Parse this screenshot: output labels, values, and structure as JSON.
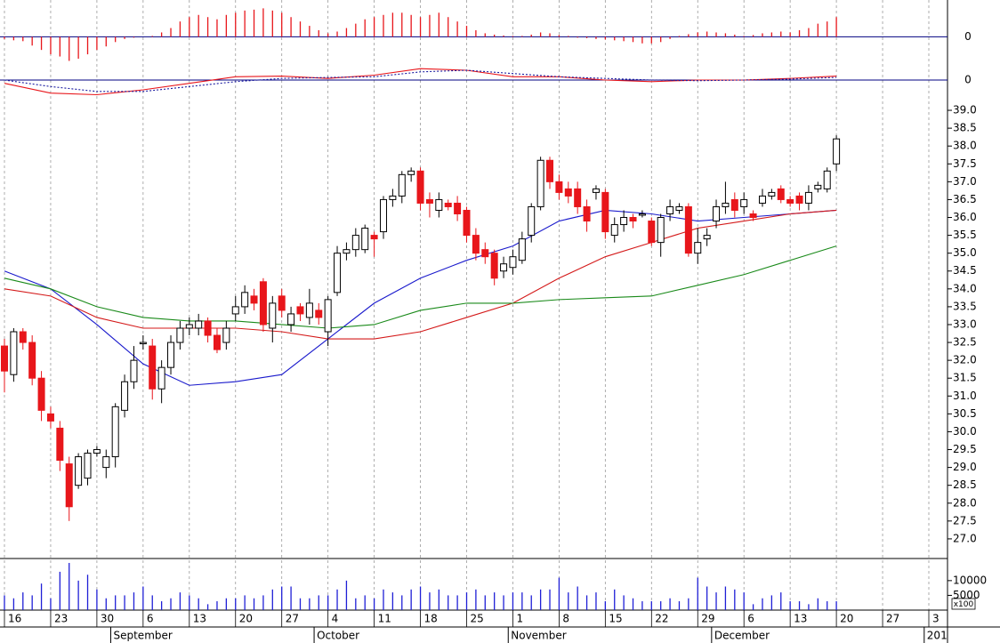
{
  "chart_data": [
    {
      "type": "bar",
      "color": "#e8161b",
      "ylim": [
        -0.5,
        0.8
      ],
      "yticks": [
        0
      ],
      "values": [
        -0.05,
        -0.08,
        -0.1,
        -0.2,
        -0.3,
        -0.4,
        -0.45,
        -0.55,
        -0.5,
        -0.4,
        -0.3,
        -0.22,
        -0.12,
        -0.05,
        -0.02,
        0.0,
        0.02,
        0.1,
        0.2,
        0.35,
        0.45,
        0.5,
        0.45,
        0.4,
        0.5,
        0.55,
        0.6,
        0.62,
        0.65,
        0.6,
        0.55,
        0.45,
        0.35,
        0.25,
        0.15,
        0.08,
        0.12,
        0.2,
        0.3,
        0.4,
        0.45,
        0.5,
        0.55,
        0.55,
        0.5,
        0.45,
        0.5,
        0.55,
        0.45,
        0.35,
        0.25,
        0.15,
        0.08,
        0.05,
        0.03,
        0.02,
        0.02,
        0.05,
        0.1,
        0.08,
        0.04,
        0.02,
        -0.02,
        -0.03,
        -0.05,
        -0.06,
        -0.08,
        -0.1,
        -0.12,
        -0.15,
        -0.15,
        -0.12,
        -0.05,
        0.02,
        0.06,
        0.1,
        0.12,
        0.1,
        0.08,
        0.05,
        0.02,
        0.04,
        0.08,
        0.1,
        0.12,
        0.1,
        0.15,
        0.2,
        0.3,
        0.35,
        0.45,
        null,
        null,
        null,
        null,
        null,
        null,
        null,
        null,
        null,
        null,
        null,
        null
      ]
    },
    {
      "type": "line",
      "ylim": [
        -0.6,
        0.6
      ],
      "yticks": [
        0
      ],
      "x": [
        0,
        5,
        10,
        15,
        20,
        25,
        30,
        35,
        40,
        45,
        50,
        55,
        60,
        65,
        70,
        75,
        80,
        85,
        90
      ],
      "series": [
        {
          "color": "#e8161b",
          "values": [
            -0.1,
            -0.4,
            -0.45,
            -0.3,
            -0.1,
            0.1,
            0.12,
            0.05,
            0.15,
            0.35,
            0.3,
            0.1,
            0.1,
            0.0,
            -0.05,
            0.0,
            0.0,
            0.05,
            0.12
          ]
        },
        {
          "color": "#1a1aa0",
          "dashed": true,
          "values": [
            0.0,
            -0.2,
            -0.35,
            -0.35,
            -0.2,
            -0.05,
            0.05,
            0.08,
            0.1,
            0.25,
            0.3,
            0.2,
            0.1,
            0.05,
            0.0,
            -0.02,
            0.0,
            0.03,
            0.08
          ]
        }
      ]
    },
    {
      "type": "candlestick",
      "up_color": "#ffffff",
      "down_color": "#e8161b",
      "ylim": [
        26.45,
        39.3
      ],
      "yticks": [
        {
          "value": 27,
          "label": "27.0"
        },
        {
          "value": 27.5,
          "label": "27.5"
        },
        {
          "value": 28,
          "label": "28.0"
        },
        {
          "value": 28.5,
          "label": "28.5"
        },
        {
          "value": 29,
          "label": "29.0"
        },
        {
          "value": 29.5,
          "label": "29.5"
        },
        {
          "value": 30,
          "label": "30.0"
        },
        {
          "value": 30.5,
          "label": "30.5"
        },
        {
          "value": 31,
          "label": "31.0"
        },
        {
          "value": 31.5,
          "label": "31.5"
        },
        {
          "value": 32,
          "label": "32.0"
        },
        {
          "value": 32.5,
          "label": "32.5"
        },
        {
          "value": 33,
          "label": "33.0"
        },
        {
          "value": 33.5,
          "label": "33.5"
        },
        {
          "value": 34,
          "label": "34.0"
        },
        {
          "value": 34.5,
          "label": "34.5"
        },
        {
          "value": 35,
          "label": "35.0"
        },
        {
          "value": 35.5,
          "label": "35.5"
        },
        {
          "value": 36,
          "label": "36.0"
        },
        {
          "value": 36.5,
          "label": "36.5"
        },
        {
          "value": 37,
          "label": "37.0"
        },
        {
          "value": 37.5,
          "label": "37.5"
        },
        {
          "value": 38,
          "label": "38.0"
        },
        {
          "value": 38.5,
          "label": "38.5"
        },
        {
          "value": 39,
          "label": "39.0"
        }
      ],
      "categories": [
        "16",
        null,
        null,
        null,
        null,
        "23",
        null,
        null,
        null,
        null,
        "30",
        null,
        null,
        null,
        null,
        "6",
        null,
        null,
        null,
        null,
        "13",
        null,
        null,
        null,
        null,
        "20",
        null,
        null,
        null,
        null,
        "27",
        null,
        null,
        null,
        null,
        "4",
        null,
        null,
        null,
        null,
        "11",
        null,
        null,
        null,
        null,
        "18",
        null,
        null,
        null,
        null,
        "25",
        null,
        null,
        null,
        null,
        "1",
        null,
        null,
        null,
        null,
        "8",
        null,
        null,
        null,
        null,
        "15",
        null,
        null,
        null,
        null,
        "22",
        null,
        null,
        null,
        null,
        "29",
        null,
        null,
        null,
        null,
        "6",
        null,
        null,
        null,
        null,
        "13",
        null,
        null,
        null,
        null,
        "20",
        null,
        null,
        null,
        null,
        "27",
        null,
        null,
        null,
        null,
        "3",
        null,
        null
      ],
      "months": [
        {
          "label": "September",
          "start": 12
        },
        {
          "label": "October",
          "start": 34
        },
        {
          "label": "November",
          "start": 55
        },
        {
          "label": "December",
          "start": 77
        },
        {
          "label": "201",
          "start": 100
        }
      ],
      "open": [
        32.4,
        31.6,
        32.8,
        32.5,
        31.5,
        30.5,
        30.1,
        29.1,
        28.5,
        28.7,
        29.4,
        29.0,
        29.3,
        30.6,
        31.4,
        32.5,
        32.4,
        31.2,
        31.8,
        32.5,
        32.9,
        32.9,
        33.1,
        32.7,
        32.5,
        33.3,
        33.5,
        33.8,
        34.2,
        32.9,
        33.8,
        33.0,
        33.5,
        33.2,
        33.4,
        32.8,
        33.9,
        35.0,
        35.1,
        35.1,
        35.5,
        35.6,
        36.5,
        36.6,
        37.2,
        37.3,
        36.5,
        36.2,
        36.4,
        36.4,
        36.2,
        35.5,
        35.1,
        35.0,
        34.5,
        34.6,
        34.8,
        35.5,
        36.3,
        37.6,
        37.0,
        36.8,
        36.8,
        36.3,
        36.7,
        36.7,
        35.5,
        35.8,
        36.0,
        36.1,
        35.9,
        35.3,
        36.1,
        36.2,
        36.3,
        35.0,
        35.4,
        35.9,
        36.3,
        36.5,
        36.3,
        36.1,
        36.4,
        36.6,
        36.8,
        36.5,
        36.6,
        36.4,
        36.8,
        36.8,
        37.5,
        null,
        null,
        null,
        null,
        null,
        null,
        null,
        null,
        null,
        null,
        null,
        null
      ],
      "high": [
        32.6,
        32.9,
        32.9,
        32.7,
        31.7,
        30.7,
        30.3,
        29.3,
        29.4,
        29.5,
        29.6,
        29.5,
        30.8,
        31.6,
        32.4,
        32.7,
        32.6,
        32.0,
        32.7,
        33.1,
        33.2,
        33.3,
        33.2,
        32.9,
        33.1,
        33.8,
        34.1,
        34.0,
        34.3,
        33.8,
        34.0,
        33.5,
        33.6,
        34.0,
        33.6,
        33.8,
        35.2,
        35.3,
        35.7,
        35.8,
        35.6,
        36.6,
        36.8,
        37.3,
        37.4,
        37.4,
        36.7,
        36.7,
        36.5,
        36.6,
        36.3,
        35.7,
        35.3,
        35.1,
        34.9,
        35.1,
        35.6,
        36.4,
        37.7,
        37.7,
        37.2,
        37.0,
        37.0,
        36.5,
        36.9,
        36.8,
        36.0,
        36.2,
        36.1,
        36.2,
        36.0,
        36.1,
        36.5,
        36.4,
        36.4,
        35.7,
        35.7,
        36.5,
        37.0,
        36.7,
        36.7,
        36.2,
        36.8,
        36.8,
        36.9,
        36.6,
        36.7,
        36.9,
        37.0,
        37.4,
        38.3,
        null,
        null,
        null,
        null,
        null,
        null,
        null,
        null,
        null,
        null,
        null,
        null
      ],
      "low": [
        31.1,
        31.4,
        32.3,
        31.3,
        30.3,
        30.1,
        28.9,
        27.5,
        28.4,
        28.5,
        29.3,
        28.7,
        29.0,
        30.4,
        31.2,
        32.3,
        30.9,
        30.8,
        31.6,
        32.3,
        32.7,
        32.7,
        32.5,
        32.2,
        32.3,
        33.1,
        33.3,
        33.4,
        32.8,
        32.5,
        33.2,
        32.8,
        33.1,
        33.0,
        33.0,
        32.4,
        33.8,
        34.8,
        34.9,
        35.0,
        34.9,
        35.4,
        36.3,
        36.4,
        37.0,
        36.2,
        36.0,
        36.0,
        36.2,
        35.9,
        35.3,
        34.8,
        34.7,
        34.1,
        34.3,
        34.4,
        34.7,
        35.3,
        36.2,
        36.8,
        36.5,
        36.4,
        36.1,
        35.6,
        36.5,
        35.4,
        35.3,
        35.6,
        35.7,
        36.0,
        35.2,
        34.9,
        35.9,
        36.1,
        34.9,
        34.7,
        35.2,
        35.7,
        36.1,
        36.0,
        36.1,
        35.9,
        36.3,
        36.5,
        36.4,
        36.3,
        36.2,
        36.2,
        36.7,
        36.7,
        37.3,
        null,
        null,
        null,
        null,
        null,
        null,
        null,
        null,
        null,
        null,
        null,
        null
      ],
      "close": [
        31.7,
        32.8,
        32.5,
        31.5,
        30.6,
        30.3,
        29.2,
        27.9,
        29.3,
        29.4,
        29.5,
        29.3,
        30.7,
        31.4,
        32.0,
        32.5,
        31.2,
        31.8,
        32.5,
        32.9,
        33.0,
        33.1,
        32.7,
        32.3,
        32.9,
        33.5,
        33.9,
        33.6,
        33.0,
        33.6,
        33.4,
        33.3,
        33.3,
        33.6,
        33.2,
        33.7,
        35.0,
        35.1,
        35.5,
        35.7,
        35.4,
        36.5,
        36.6,
        37.2,
        37.3,
        36.4,
        36.4,
        36.5,
        36.3,
        36.1,
        35.5,
        35.0,
        34.9,
        34.3,
        34.7,
        34.9,
        35.4,
        36.3,
        37.6,
        37.0,
        36.7,
        36.6,
        36.3,
        35.9,
        36.8,
        35.6,
        35.8,
        36.0,
        35.9,
        36.1,
        35.3,
        36.0,
        36.3,
        36.3,
        35.0,
        35.3,
        35.5,
        36.3,
        36.4,
        36.2,
        36.5,
        36.0,
        36.6,
        36.7,
        36.5,
        36.4,
        36.4,
        36.7,
        36.9,
        37.3,
        38.2,
        null,
        null,
        null,
        null,
        null,
        null,
        null,
        null,
        null,
        null,
        null,
        null
      ],
      "overlay_x": [
        0,
        5,
        10,
        15,
        20,
        25,
        30,
        35,
        40,
        45,
        50,
        55,
        60,
        65,
        70,
        75,
        80,
        85,
        90
      ],
      "overlays": [
        {
          "color": "#1a1acc",
          "values": [
            34.5,
            34.0,
            33.0,
            31.9,
            31.3,
            31.4,
            31.6,
            32.6,
            33.6,
            34.3,
            34.8,
            35.2,
            35.9,
            36.2,
            36.1,
            35.9,
            36.0,
            36.1,
            36.2
          ]
        },
        {
          "color": "#d41a1a",
          "values": [
            34.0,
            33.8,
            33.2,
            32.9,
            32.9,
            32.9,
            32.8,
            32.6,
            32.6,
            32.8,
            33.2,
            33.6,
            34.3,
            34.9,
            35.3,
            35.7,
            35.9,
            36.1,
            36.2
          ]
        },
        {
          "color": "#1a8a1a",
          "values": [
            34.3,
            34.0,
            33.5,
            33.2,
            33.1,
            33.1,
            33.0,
            32.9,
            33.0,
            33.4,
            33.6,
            33.6,
            33.7,
            33.75,
            33.8,
            34.1,
            34.4,
            34.8,
            35.2
          ]
        }
      ]
    },
    {
      "type": "bar",
      "color": "#1f1fd6",
      "ylim": [
        0,
        17500
      ],
      "yticks": [
        10000,
        5000
      ],
      "unit_label": "x100",
      "values": [
        5000,
        4000,
        6000,
        5000,
        9000,
        4000,
        13000,
        16000,
        10000,
        12000,
        7000,
        4000,
        5000,
        5000,
        6000,
        8000,
        5000,
        3000,
        4000,
        6000,
        5000,
        4000,
        2000,
        3000,
        4000,
        4000,
        5000,
        4000,
        5000,
        7000,
        8000,
        8000,
        4000,
        4000,
        5000,
        5000,
        7000,
        10000,
        4000,
        5000,
        4000,
        7000,
        6000,
        5000,
        7000,
        8000,
        6000,
        7000,
        5000,
        5000,
        6000,
        7000,
        5000,
        6000,
        5000,
        6000,
        6000,
        5000,
        7000,
        7000,
        11000,
        6000,
        8000,
        5000,
        6000,
        3000,
        7000,
        5000,
        4000,
        3000,
        3000,
        3000,
        4000,
        3000,
        4000,
        11000,
        8000,
        6000,
        8000,
        7000,
        6000,
        2000,
        4000,
        5000,
        6000,
        3000,
        3000,
        2000,
        4000,
        3000,
        3000,
        null,
        null,
        null,
        null,
        null,
        null,
        null,
        null,
        null,
        null,
        null,
        null
      ]
    }
  ]
}
